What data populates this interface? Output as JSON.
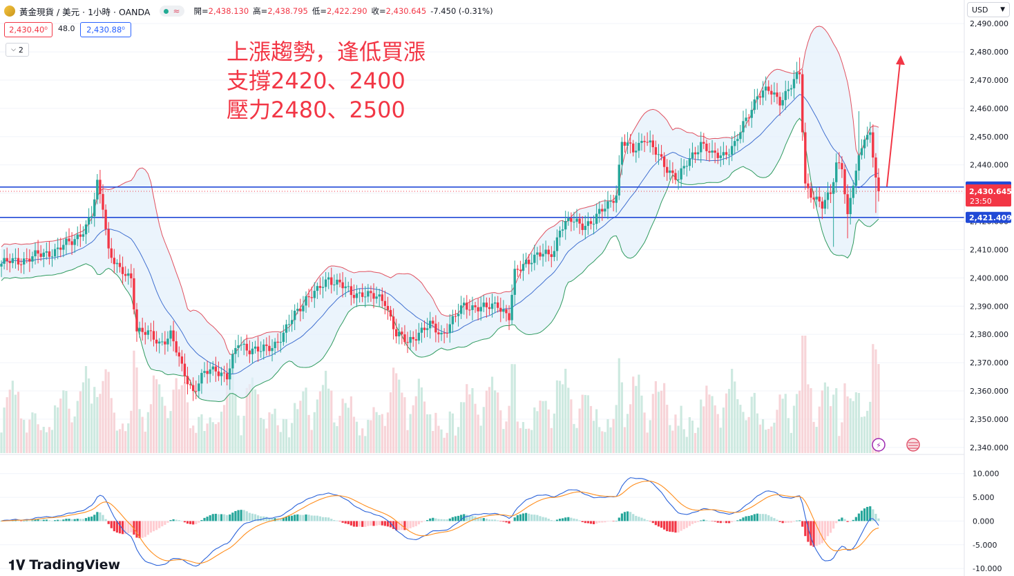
{
  "header": {
    "symbol": "黃金現貨 / 美元 · 1小時 · OANDA",
    "open_label": "開=",
    "open": "2,438.130",
    "high_label": "高=",
    "high": "2,438.795",
    "low_label": "低=",
    "low": "2,422.290",
    "close_label": "收=",
    "close": "2,430.645",
    "change": "-7.450 (-0.31%)"
  },
  "trade": {
    "sell": "2,430.40⁰",
    "spread": "48.0",
    "buy": "2,430.88⁰"
  },
  "indicators_collapsed": "2",
  "currency": "USD",
  "annotation": [
    "上漲趨勢，逢低買漲",
    "支撐2420、2400",
    "壓力2480、2500"
  ],
  "brand": "TradingView",
  "colors": {
    "up": "#26a69a",
    "down": "#f23645",
    "bb_upper": "#e0505f",
    "bb_mid": "#3f6fd0",
    "bb_lower": "#2e9a5e",
    "bb_fill": "#e3f0fb",
    "hline": "#2049d6",
    "macd": "#2a62d9",
    "signal": "#ff8c1a"
  },
  "chart_data": [
    {
      "type": "candlestick",
      "title": "",
      "y_axis_ticks": [
        "2,490.000",
        "2,480.000",
        "2,470.000",
        "2,460.000",
        "2,450.000",
        "2,440.000",
        "2,430.000",
        "2,420.000",
        "2,410.000",
        "2,400.000",
        "2,390.000",
        "2,380.000",
        "2,370.000",
        "2,360.000",
        "2,350.000",
        "2,340.000"
      ],
      "ylim": [
        2338,
        2492
      ],
      "last_price": 2430.645,
      "countdown": "23:50",
      "horizontal_lines": [
        {
          "label": "2,432.164",
          "value": 2432.164
        },
        {
          "label": "2,421.409",
          "value": 2421.409
        }
      ],
      "anchors": [
        [
          0,
          2405
        ],
        [
          10,
          2407
        ],
        [
          20,
          2410
        ],
        [
          25,
          2413
        ],
        [
          30,
          2418
        ],
        [
          32,
          2422
        ],
        [
          34,
          2433
        ],
        [
          36,
          2426
        ],
        [
          38,
          2410
        ],
        [
          42,
          2402
        ],
        [
          46,
          2400
        ],
        [
          48,
          2382
        ],
        [
          52,
          2380
        ],
        [
          56,
          2377
        ],
        [
          60,
          2380
        ],
        [
          64,
          2368
        ],
        [
          68,
          2360
        ],
        [
          72,
          2366
        ],
        [
          76,
          2368
        ],
        [
          80,
          2365
        ],
        [
          84,
          2377
        ],
        [
          88,
          2375
        ],
        [
          92,
          2374
        ],
        [
          96,
          2376
        ],
        [
          100,
          2380
        ],
        [
          104,
          2387
        ],
        [
          108,
          2393
        ],
        [
          112,
          2395
        ],
        [
          116,
          2400
        ],
        [
          120,
          2398
        ],
        [
          124,
          2394
        ],
        [
          128,
          2395
        ],
        [
          132,
          2393
        ],
        [
          136,
          2392
        ],
        [
          140,
          2380
        ],
        [
          144,
          2377
        ],
        [
          148,
          2381
        ],
        [
          152,
          2383
        ],
        [
          156,
          2380
        ],
        [
          160,
          2385
        ],
        [
          164,
          2390
        ],
        [
          168,
          2390
        ],
        [
          172,
          2389
        ],
        [
          176,
          2391
        ],
        [
          180,
          2386
        ],
        [
          182,
          2401
        ],
        [
          186,
          2406
        ],
        [
          190,
          2408
        ],
        [
          194,
          2408
        ],
        [
          196,
          2410
        ],
        [
          198,
          2418
        ],
        [
          202,
          2420
        ],
        [
          206,
          2419
        ],
        [
          210,
          2420
        ],
        [
          214,
          2425
        ],
        [
          218,
          2430
        ],
        [
          220,
          2448
        ],
        [
          224,
          2445
        ],
        [
          228,
          2450
        ],
        [
          232,
          2444
        ],
        [
          236,
          2439
        ],
        [
          240,
          2435
        ],
        [
          244,
          2442
        ],
        [
          248,
          2448
        ],
        [
          252,
          2443
        ],
        [
          256,
          2444
        ],
        [
          260,
          2447
        ],
        [
          264,
          2456
        ],
        [
          268,
          2465
        ],
        [
          272,
          2466
        ],
        [
          276,
          2463
        ],
        [
          280,
          2468
        ],
        [
          283,
          2472
        ],
        [
          285,
          2433
        ],
        [
          288,
          2429
        ],
        [
          291,
          2425
        ],
        [
          294,
          2430
        ],
        [
          296,
          2441
        ],
        [
          298,
          2440
        ],
        [
          300,
          2421
        ],
        [
          302,
          2433
        ],
        [
          304,
          2442
        ],
        [
          306,
          2451
        ],
        [
          308,
          2451
        ],
        [
          310,
          2436
        ],
        [
          311,
          2430.6
        ]
      ],
      "volume_max": 2.0,
      "volume_ticks": []
    },
    {
      "type": "line",
      "title": "",
      "y_axis_ticks": [
        "10.000",
        "5.000",
        "0.000",
        "-5.000",
        "-10.000"
      ],
      "ylim": [
        -11,
        12
      ],
      "series": [
        {
          "values_from": "macd"
        },
        {
          "values_from": "signal"
        },
        {
          "values_from": "histogram"
        }
      ]
    }
  ]
}
